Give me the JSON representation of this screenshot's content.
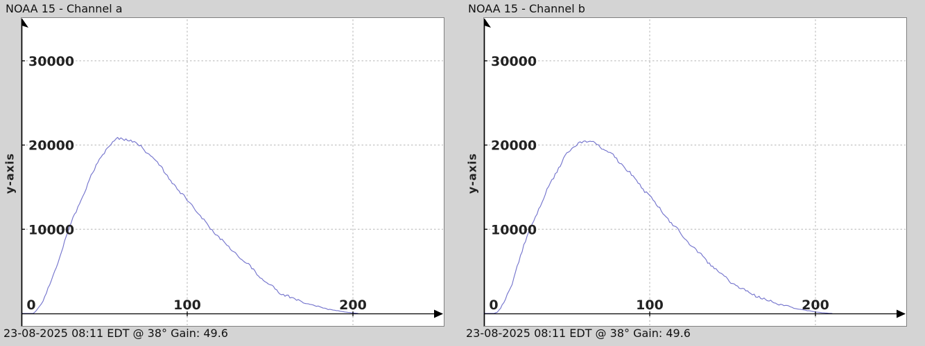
{
  "window": {
    "background": "#d4d4d4",
    "panel_background": "#ffffff",
    "panel_border": "#7f7f7f",
    "grid_color": "#b3b3b3",
    "axis_color": "#000000",
    "text_color": "#1a1a1a"
  },
  "chart_data": [
    {
      "type": "line",
      "title": "NOAA 15 - Channel a",
      "ylabel": "y-axis",
      "footer": "23-08-2025 08:11 EDT @ 38° Gain: 49.6",
      "xticks": [
        0,
        100,
        200
      ],
      "yticks": [
        10000,
        20000,
        30000
      ],
      "xlim": [
        0,
        255
      ],
      "ylim": [
        0,
        33000
      ],
      "grid": true,
      "line_color": "#7575cd",
      "x": [
        0,
        5,
        7,
        8,
        10,
        12,
        15,
        18,
        20,
        23,
        25,
        28,
        30,
        33,
        35,
        38,
        40,
        43,
        45,
        48,
        50,
        53,
        55,
        58,
        60,
        63,
        65,
        68,
        70,
        73,
        75,
        78,
        80,
        83,
        85,
        88,
        90,
        93,
        95,
        98,
        100,
        103,
        105,
        108,
        110,
        113,
        115,
        118,
        120,
        125,
        130,
        135,
        140,
        145,
        150,
        155,
        160,
        165,
        170,
        175,
        180,
        185,
        190,
        195,
        200,
        203
      ],
      "y": [
        0,
        0,
        0,
        150,
        600,
        1200,
        2400,
        3900,
        5000,
        6800,
        8000,
        9700,
        10700,
        12100,
        13100,
        14500,
        15400,
        16700,
        17500,
        18600,
        19200,
        20000,
        20400,
        20700,
        20750,
        20700,
        20600,
        20400,
        20100,
        19700,
        19300,
        18800,
        18300,
        17600,
        17100,
        16300,
        15800,
        15000,
        14500,
        13900,
        13500,
        12800,
        12300,
        11500,
        11000,
        10300,
        9900,
        9300,
        8900,
        7900,
        7000,
        6100,
        5200,
        4100,
        3300,
        2600,
        2100,
        1700,
        1300,
        1000,
        750,
        520,
        330,
        180,
        70,
        0
      ]
    },
    {
      "type": "line",
      "title": "NOAA 15 - Channel b",
      "ylabel": "y-axis",
      "footer": "23-08-2025 08:11 EDT @ 38° Gain: 49.6",
      "xticks": [
        0,
        100,
        200
      ],
      "yticks": [
        10000,
        20000,
        30000
      ],
      "xlim": [
        0,
        255
      ],
      "ylim": [
        0,
        33000
      ],
      "grid": true,
      "line_color": "#7575cd",
      "x": [
        0,
        6,
        8,
        10,
        12,
        15,
        18,
        20,
        23,
        25,
        28,
        30,
        33,
        35,
        38,
        40,
        43,
        45,
        48,
        50,
        53,
        55,
        58,
        60,
        62,
        65,
        68,
        70,
        73,
        75,
        78,
        80,
        83,
        85,
        88,
        90,
        93,
        95,
        98,
        100,
        103,
        105,
        108,
        110,
        113,
        115,
        118,
        120,
        125,
        130,
        135,
        140,
        145,
        150,
        155,
        160,
        165,
        170,
        175,
        180,
        185,
        190,
        195,
        200,
        205,
        210
      ],
      "y": [
        0,
        0,
        150,
        600,
        1300,
        2600,
        4200,
        5500,
        7300,
        8600,
        10100,
        11000,
        12400,
        13200,
        14600,
        15400,
        16600,
        17300,
        18300,
        18900,
        19600,
        20000,
        20400,
        20450,
        20400,
        20300,
        20100,
        19900,
        19500,
        19200,
        18700,
        18300,
        17700,
        17300,
        16700,
        16200,
        15500,
        15000,
        14400,
        13900,
        13200,
        12700,
        12000,
        11500,
        10800,
        10300,
        9700,
        9200,
        8100,
        7100,
        6100,
        5200,
        4400,
        3600,
        3000,
        2500,
        2050,
        1650,
        1300,
        1000,
        750,
        520,
        330,
        180,
        70,
        0
      ]
    }
  ]
}
